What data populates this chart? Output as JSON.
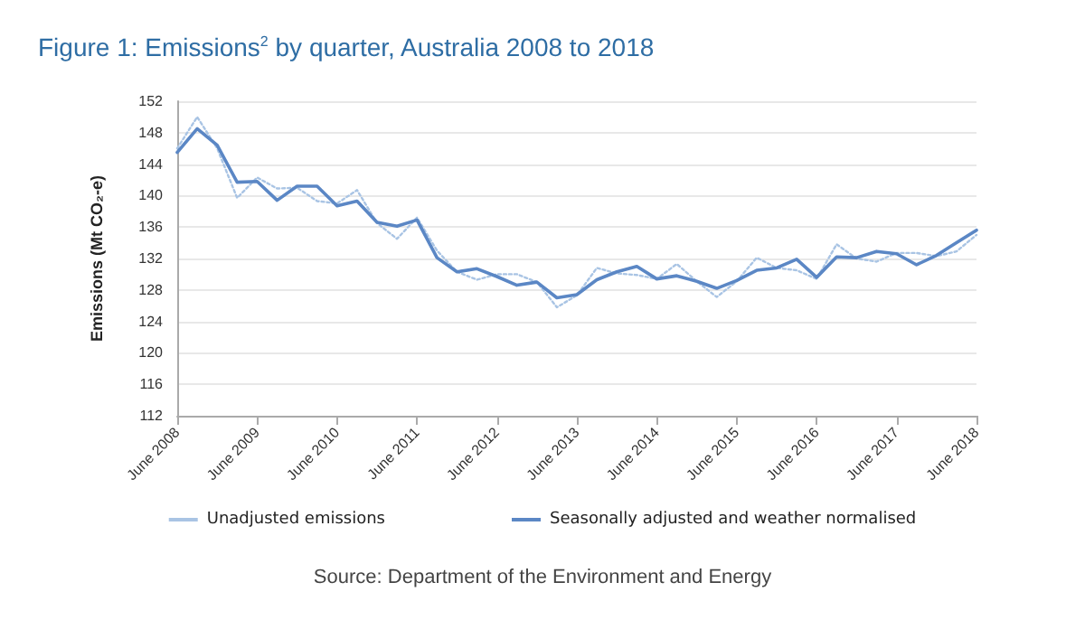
{
  "chart_data": {
    "type": "line",
    "title": "Figure 1: Emissions$^{2}$ by quarter, Australia 2008 to 2018",
    "ylabel": "Emissions (Mt CO₂-e)",
    "categories": [
      "June 2008",
      null,
      null,
      null,
      "June 2009",
      null,
      null,
      null,
      "June 2010",
      null,
      null,
      null,
      "June 2011",
      null,
      null,
      null,
      "June 2012",
      null,
      null,
      null,
      "June 2013",
      null,
      null,
      null,
      "June 2014",
      null,
      null,
      null,
      "June 2015",
      null,
      null,
      null,
      "June 2016",
      null,
      null,
      null,
      "June 2017",
      null,
      null,
      null,
      "June 2018"
    ],
    "series": [
      {
        "name": "Unadjusted emissions",
        "color": "#a9c4e4",
        "line_style": "dotted",
        "values": [
          146.0,
          150.0,
          146.0,
          139.7,
          142.3,
          140.9,
          141.0,
          139.3,
          139.0,
          140.7,
          136.5,
          134.5,
          137.2,
          133.0,
          130.3,
          129.3,
          130.0,
          130.0,
          129.0,
          125.8,
          127.3,
          130.8,
          130.1,
          129.9,
          129.4,
          131.3,
          129.1,
          127.1,
          129.1,
          132.1,
          130.8,
          130.5,
          129.4,
          133.8,
          132.0,
          131.6,
          132.7,
          132.7,
          132.3,
          132.9,
          135.0
        ]
      },
      {
        "name": "Seasonally adjusted and weather normalised",
        "color": "#5b87c5",
        "line_style": "solid",
        "values": [
          145.5,
          148.5,
          146.4,
          141.7,
          141.8,
          139.4,
          141.2,
          141.2,
          138.7,
          139.3,
          136.6,
          136.1,
          136.9,
          132.1,
          130.3,
          130.7,
          129.7,
          128.6,
          129.0,
          127.0,
          127.4,
          129.3,
          130.3,
          131.0,
          129.4,
          129.8,
          129.1,
          128.2,
          129.2,
          130.5,
          130.8,
          131.9,
          129.6,
          132.2,
          132.1,
          132.9,
          132.6,
          131.2,
          132.4,
          134.0,
          135.6
        ]
      }
    ],
    "ylim": [
      112,
      152
    ],
    "yticks": [
      112,
      116,
      120,
      124,
      128,
      132,
      136,
      140,
      144,
      148,
      152
    ],
    "grid": "y",
    "legend": "bottom",
    "marker": "none",
    "annotations": [
      "Source: Department of the Environment and Energy"
    ]
  }
}
